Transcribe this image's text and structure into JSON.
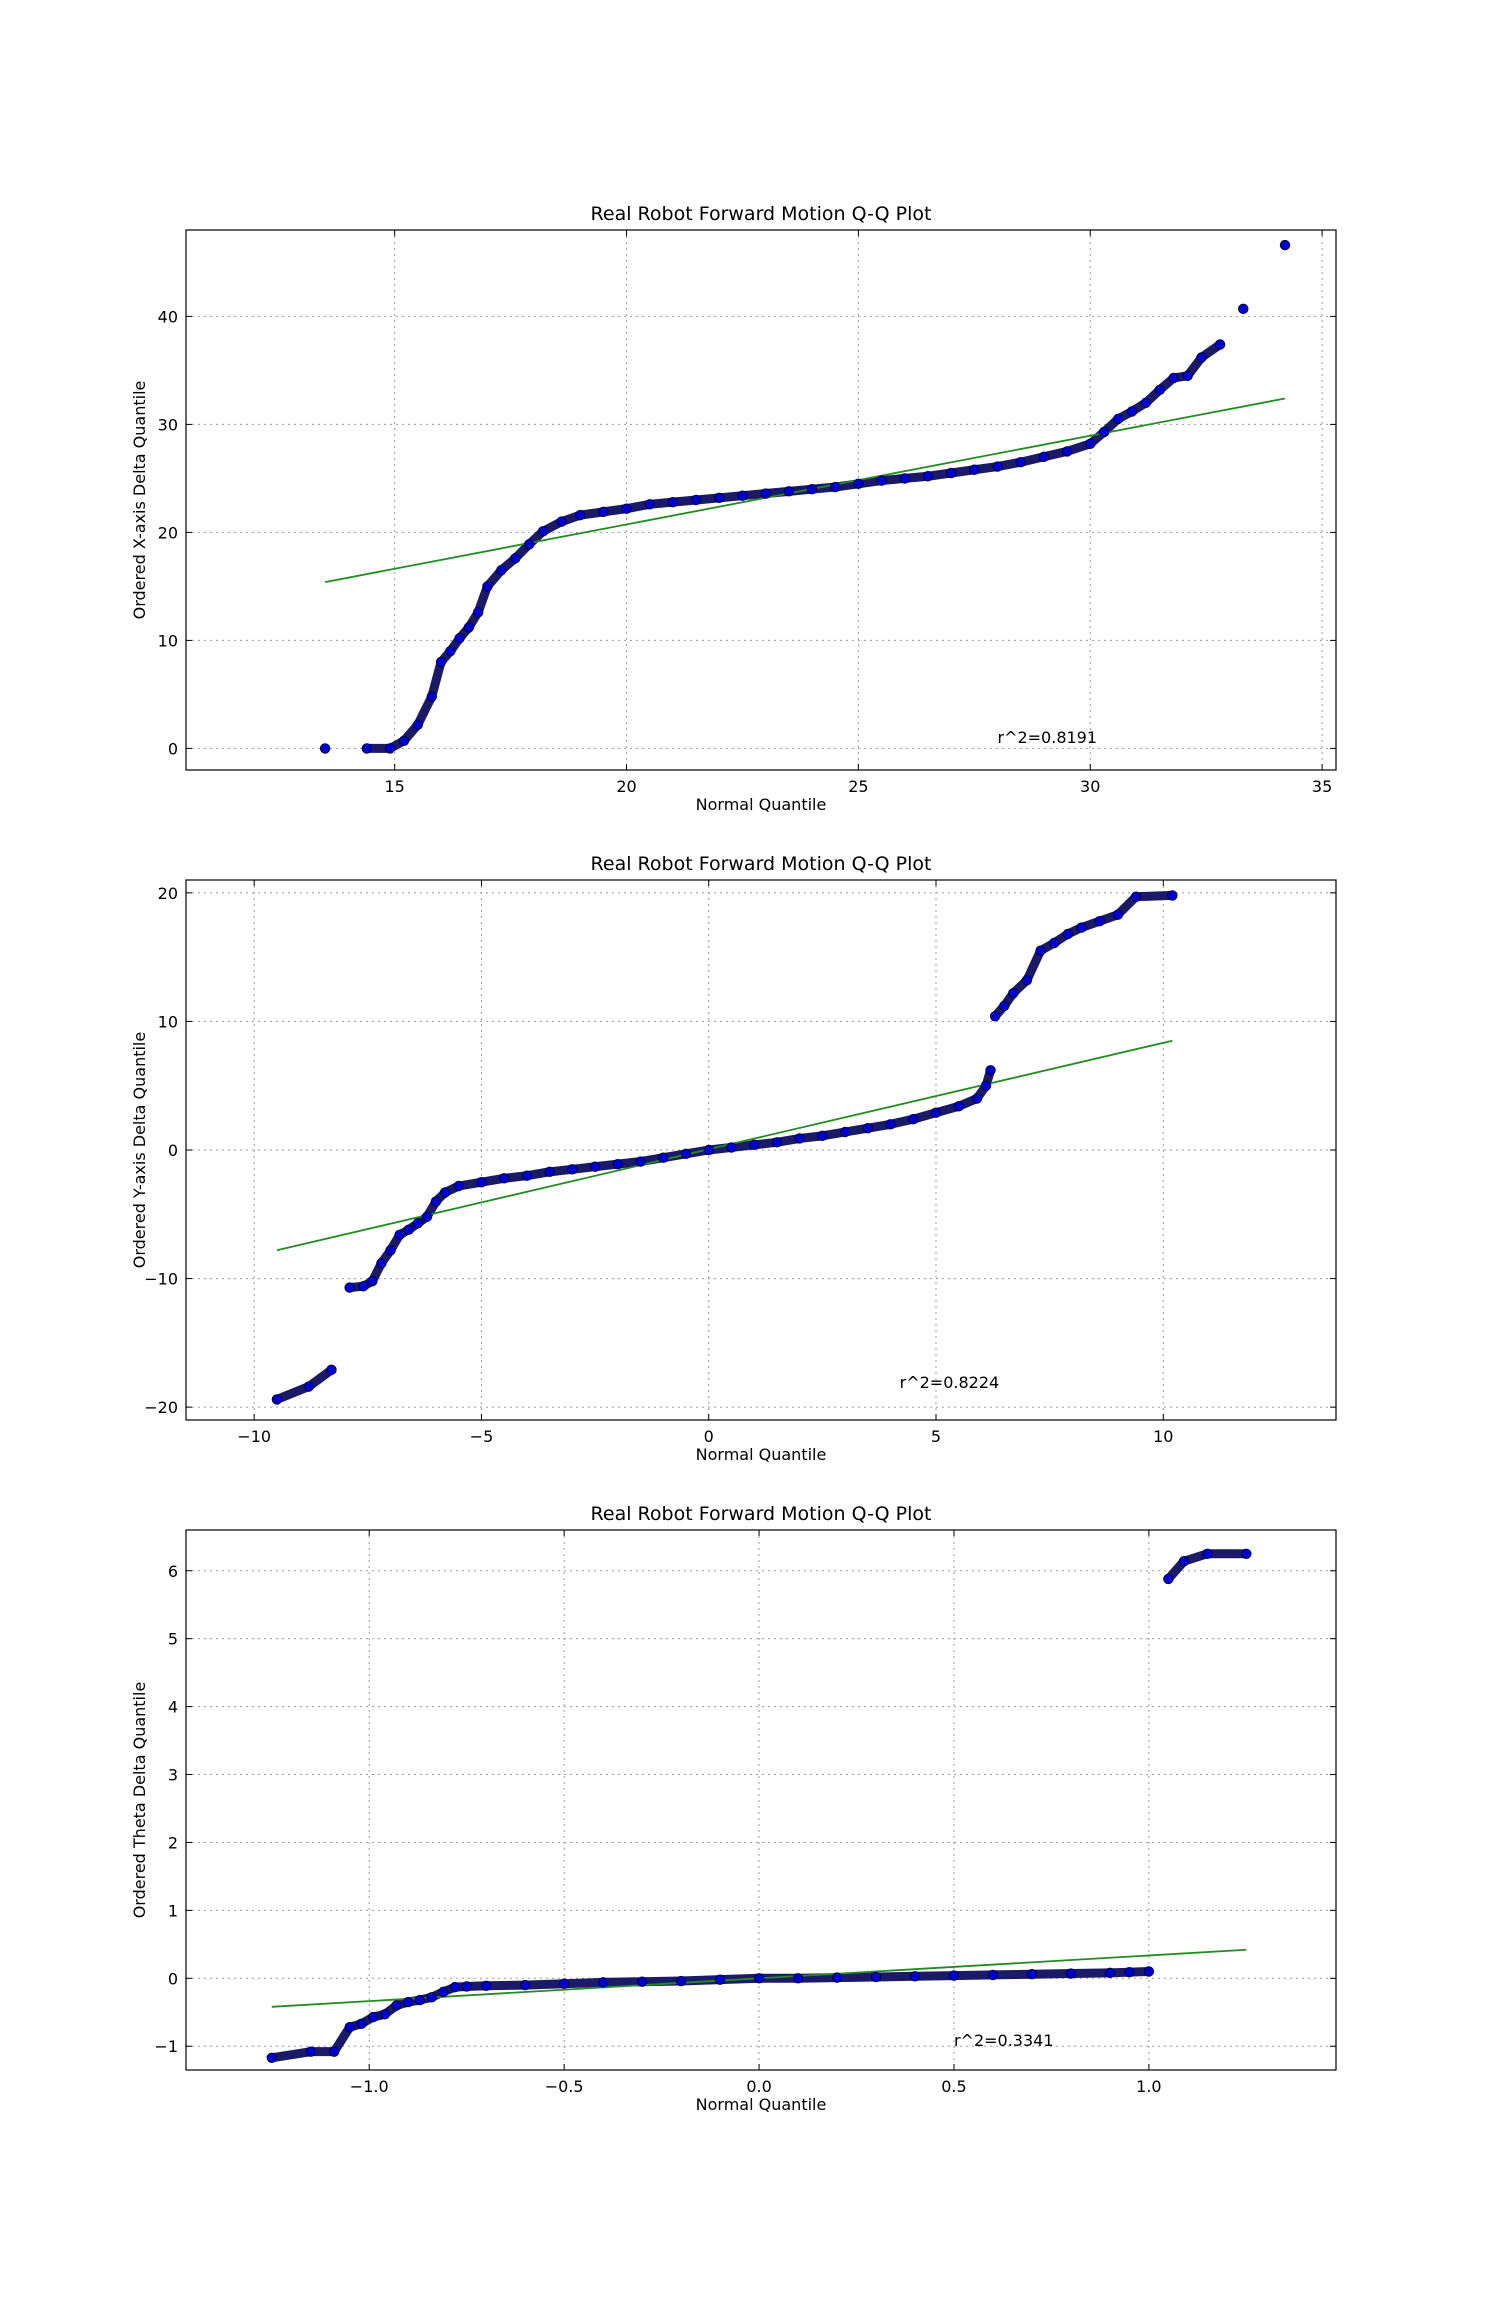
{
  "chart_data": [
    {
      "type": "scatter",
      "title": "Real Robot Forward Motion Q-Q Plot",
      "xlabel": "Normal Quantile",
      "ylabel": "Ordered X-axis Delta Quantile",
      "xlim": [
        10.5,
        35.3
      ],
      "ylim": [
        -2,
        48
      ],
      "xticks": [
        15,
        20,
        25,
        30,
        35
      ],
      "yticks": [
        0,
        10,
        20,
        30,
        40
      ],
      "xtick_labels": [
        "15",
        "20",
        "25",
        "30",
        "35"
      ],
      "ytick_labels": [
        "0",
        "10",
        "20",
        "30",
        "40"
      ],
      "grid": true,
      "annotation": {
        "text": "r^2=0.8191",
        "x": 28.0,
        "y": 0.5
      },
      "fit_line": {
        "x": [
          13.5,
          34.2
        ],
        "y": [
          15.4,
          32.4
        ]
      },
      "series": [
        {
          "type": "scatter",
          "color": "#0000cc",
          "x": [
            13.5,
            14.4,
            14.9,
            15.2,
            15.5,
            15.8,
            16.0,
            16.2,
            16.4,
            16.6,
            16.8,
            17.0,
            17.3,
            17.6,
            17.9,
            18.2,
            18.6,
            19.0,
            19.5,
            20.0,
            20.5,
            21.0,
            21.5,
            22.0,
            22.5,
            23.0,
            23.5,
            24.0,
            24.5,
            25.0,
            25.5,
            26.0,
            26.5,
            27.0,
            27.5,
            28.0,
            28.5,
            29.0,
            29.5,
            30.0,
            30.3,
            30.6,
            30.9,
            31.2,
            31.5,
            31.8,
            32.1,
            32.4,
            32.8,
            33.3,
            34.2
          ],
          "y": [
            0,
            0,
            0,
            0.7,
            2.2,
            4.8,
            8.0,
            9.0,
            10.2,
            11.2,
            12.6,
            15.0,
            16.5,
            17.6,
            18.9,
            20.1,
            21.0,
            21.6,
            21.9,
            22.2,
            22.6,
            22.8,
            23.0,
            23.2,
            23.4,
            23.6,
            23.8,
            24.0,
            24.2,
            24.5,
            24.8,
            25.0,
            25.2,
            25.5,
            25.8,
            26.1,
            26.5,
            27.0,
            27.5,
            28.2,
            29.3,
            30.5,
            31.2,
            32.0,
            33.2,
            34.3,
            34.5,
            36.2,
            37.4,
            40.7,
            46.6
          ]
        }
      ]
    },
    {
      "type": "scatter",
      "title": "Real Robot Forward Motion Q-Q Plot",
      "xlabel": "Normal Quantile",
      "ylabel": "Ordered Y-axis Delta Quantile",
      "xlim": [
        -11.5,
        13.8
      ],
      "ylim": [
        -21,
        21
      ],
      "xticks": [
        -10,
        -5,
        0,
        5,
        10
      ],
      "yticks": [
        -20,
        -10,
        0,
        10,
        20
      ],
      "xtick_labels": [
        "−10",
        "−5",
        "0",
        "5",
        "10"
      ],
      "ytick_labels": [
        "−20",
        "−10",
        "0",
        "10",
        "20"
      ],
      "grid": true,
      "annotation": {
        "text": "r^2=0.8224",
        "x": 4.2,
        "y": -18.5
      },
      "fit_line": {
        "x": [
          -9.5,
          10.2
        ],
        "y": [
          -7.8,
          8.5
        ]
      },
      "series": [
        {
          "type": "scatter",
          "color": "#0000cc",
          "x": [
            -9.5,
            -8.8,
            -8.3,
            -7.9,
            -7.6,
            -7.4,
            -7.2,
            -7.0,
            -6.8,
            -6.6,
            -6.4,
            -6.2,
            -6.0,
            -5.8,
            -5.5,
            -5.0,
            -4.5,
            -4.0,
            -3.5,
            -3.0,
            -2.5,
            -2.0,
            -1.5,
            -1.0,
            -0.5,
            0.0,
            0.5,
            1.0,
            1.5,
            2.0,
            2.5,
            3.0,
            3.5,
            4.0,
            4.5,
            5.0,
            5.5,
            5.9,
            6.1,
            6.2,
            6.3,
            6.5,
            6.7,
            7.0,
            7.3,
            7.6,
            7.9,
            8.2,
            8.6,
            9.0,
            9.4,
            10.2
          ],
          "y": [
            -19.4,
            -18.4,
            -17.1,
            -10.7,
            -10.6,
            -10.2,
            -8.8,
            -7.8,
            -6.6,
            -6.2,
            -5.7,
            -5.2,
            -4.0,
            -3.3,
            -2.8,
            -2.5,
            -2.2,
            -2.0,
            -1.7,
            -1.5,
            -1.3,
            -1.1,
            -0.9,
            -0.6,
            -0.3,
            0.0,
            0.2,
            0.4,
            0.6,
            0.9,
            1.1,
            1.4,
            1.7,
            2.0,
            2.4,
            2.9,
            3.4,
            4.0,
            5.0,
            6.2,
            10.4,
            11.2,
            12.2,
            13.2,
            15.5,
            16.1,
            16.8,
            17.3,
            17.8,
            18.3,
            19.7,
            19.8
          ]
        }
      ]
    },
    {
      "type": "scatter",
      "title": "Real Robot Forward Motion Q-Q Plot",
      "xlabel": "Normal Quantile",
      "ylabel": "Ordered Theta Delta Quantile",
      "xlim": [
        -1.47,
        1.48
      ],
      "ylim": [
        -1.35,
        6.6
      ],
      "xticks": [
        -1.0,
        -0.5,
        0.0,
        0.5,
        1.0
      ],
      "yticks": [
        -1,
        0,
        1,
        2,
        3,
        4,
        5,
        6
      ],
      "xtick_labels": [
        "−1.0",
        "−0.5",
        "0.0",
        "0.5",
        "1.0"
      ],
      "ytick_labels": [
        "−1",
        "0",
        "1",
        "2",
        "3",
        "4",
        "5",
        "6"
      ],
      "grid": true,
      "annotation": {
        "text": "r^2=0.3341",
        "x": 0.5,
        "y": -1.0
      },
      "fit_line": {
        "x": [
          -1.25,
          1.25
        ],
        "y": [
          -0.42,
          0.42
        ]
      },
      "series": [
        {
          "type": "scatter",
          "color": "#0000cc",
          "x": [
            -1.25,
            -1.15,
            -1.09,
            -1.05,
            -1.02,
            -0.99,
            -0.96,
            -0.93,
            -0.9,
            -0.87,
            -0.84,
            -0.81,
            -0.78,
            -0.75,
            -0.7,
            -0.6,
            -0.5,
            -0.4,
            -0.3,
            -0.2,
            -0.1,
            0.0,
            0.1,
            0.2,
            0.3,
            0.4,
            0.5,
            0.6,
            0.7,
            0.8,
            0.9,
            0.95,
            1.0,
            1.05,
            1.09,
            1.15,
            1.25
          ],
          "y": [
            -1.17,
            -1.08,
            -1.08,
            -0.72,
            -0.67,
            -0.57,
            -0.53,
            -0.4,
            -0.35,
            -0.32,
            -0.28,
            -0.2,
            -0.13,
            -0.12,
            -0.11,
            -0.1,
            -0.08,
            -0.06,
            -0.05,
            -0.04,
            -0.02,
            0.0,
            0.0,
            0.01,
            0.02,
            0.03,
            0.04,
            0.05,
            0.06,
            0.07,
            0.08,
            0.09,
            0.1,
            5.88,
            6.14,
            6.25,
            6.25
          ]
        }
      ]
    }
  ]
}
